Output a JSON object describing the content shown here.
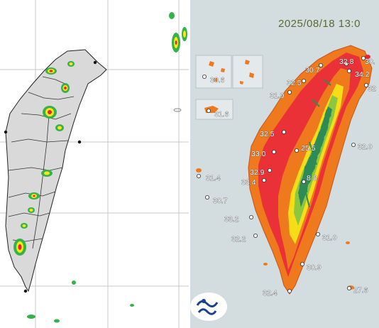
{
  "right_panel": {
    "timestamp": "2025/08/18 13:0",
    "logo_icon": "cwa-logo-icon",
    "temperatures": [
      {
        "id": "t1",
        "value": "30.7"
      },
      {
        "id": "t2",
        "value": "32.8"
      },
      {
        "id": "t3",
        "value": "30."
      },
      {
        "id": "t4",
        "value": "34.2"
      },
      {
        "id": "t5",
        "value": "32.5"
      },
      {
        "id": "t6",
        "value": "32"
      },
      {
        "id": "t7",
        "value": "31.9"
      },
      {
        "id": "t8",
        "value": "30.6"
      },
      {
        "id": "t9",
        "value": "31.6"
      },
      {
        "id": "t10",
        "value": "32.5"
      },
      {
        "id": "t11",
        "value": "33.0"
      },
      {
        "id": "t12",
        "value": "25.5"
      },
      {
        "id": "t13",
        "value": "32.0"
      },
      {
        "id": "t14",
        "value": "32.9"
      },
      {
        "id": "t15",
        "value": "33.4"
      },
      {
        "id": "t16",
        "value": "8.8"
      },
      {
        "id": "t17",
        "value": "31.4"
      },
      {
        "id": "t18",
        "value": "30.7"
      },
      {
        "id": "t19",
        "value": "33.2"
      },
      {
        "id": "t20",
        "value": "32.2"
      },
      {
        "id": "t21",
        "value": "31.0"
      },
      {
        "id": "t22",
        "value": "30.9"
      },
      {
        "id": "t23",
        "value": "32.4"
      },
      {
        "id": "t24",
        "value": "27.6"
      }
    ]
  },
  "colors": {
    "sea_left": "#ffffff",
    "land_left": "#d9d9d9",
    "sea_right": "#d3dcdf",
    "hot": "#e8243c",
    "warm": "#ef7a1e",
    "mid": "#8dc63f",
    "cool": "#2e8b57"
  }
}
